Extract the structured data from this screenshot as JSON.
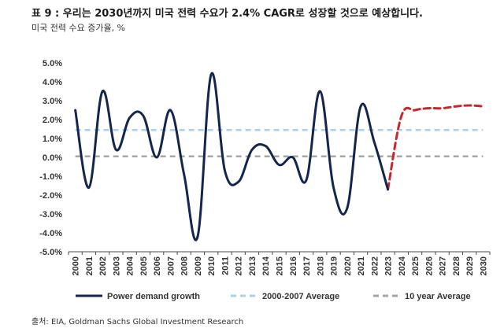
{
  "header": {
    "title": "표 9 : 우리는 2030년까지 미국 전력 수요가 2.4% CAGR로 성장할 것으로 예상합니다.",
    "subtitle": "미국 전력 수요 증가율, %"
  },
  "footer": {
    "source": "출처: EIA, Goldman Sachs Global Investment Research"
  },
  "colors": {
    "demand": "#14264d",
    "forecast": "#c8262b",
    "avg_2000_2007": "#a9cfea",
    "avg_10yr": "#a6a6a6",
    "axis": "#4a4a4a"
  },
  "chart_data": {
    "type": "line",
    "title": "",
    "xlabel": "",
    "ylabel": "",
    "ylim": [
      -5.0,
      5.0
    ],
    "y_ticks": [
      "5.0%",
      "4.0%",
      "3.0%",
      "2.0%",
      "1.0%",
      "0.0%",
      "-1.0%",
      "-2.0%",
      "-3.0%",
      "-4.0%",
      "-5.0%"
    ],
    "x": [
      "2000",
      "2001",
      "2002",
      "2003",
      "2004",
      "2005",
      "2006",
      "2007",
      "2008",
      "2009",
      "2010",
      "2011",
      "2012",
      "2013",
      "2014",
      "2015",
      "2016",
      "2017",
      "2018",
      "2019",
      "2020",
      "2021",
      "2022",
      "2023",
      "2024",
      "2025",
      "2026",
      "2027",
      "2028",
      "2029",
      "2030"
    ],
    "grid": false,
    "legend_position": "bottom",
    "series": [
      {
        "name": "Power demand growth",
        "x": [
          "2000",
          "2001",
          "2002",
          "2003",
          "2004",
          "2005",
          "2006",
          "2007",
          "2008",
          "2009",
          "2010",
          "2011",
          "2012",
          "2013",
          "2014",
          "2015",
          "2016",
          "2017",
          "2018",
          "2019",
          "2020",
          "2021",
          "2022",
          "2023"
        ],
        "values": [
          2.5,
          -1.6,
          3.5,
          0.4,
          2.1,
          2.2,
          0.0,
          2.5,
          -0.9,
          -4.2,
          4.4,
          -0.7,
          -1.3,
          0.4,
          0.6,
          -0.4,
          0.0,
          -1.2,
          3.5,
          -1.6,
          -2.7,
          2.7,
          0.8,
          -1.7
        ]
      },
      {
        "name": "",
        "style": "dashed-forecast",
        "x": [
          "2023",
          "2024",
          "2025",
          "2026",
          "2027",
          "2028",
          "2029",
          "2030"
        ],
        "values": [
          -1.7,
          2.2,
          2.5,
          2.6,
          2.6,
          2.7,
          2.75,
          2.7
        ]
      },
      {
        "name": "2000-2007 Average",
        "style": "reference-line",
        "x": [
          "2000",
          "2030"
        ],
        "values": [
          1.45,
          1.45
        ]
      },
      {
        "name": "10 year Average",
        "style": "reference-line",
        "x": [
          "2000",
          "2030"
        ],
        "values": [
          0.05,
          0.05
        ]
      }
    ]
  }
}
